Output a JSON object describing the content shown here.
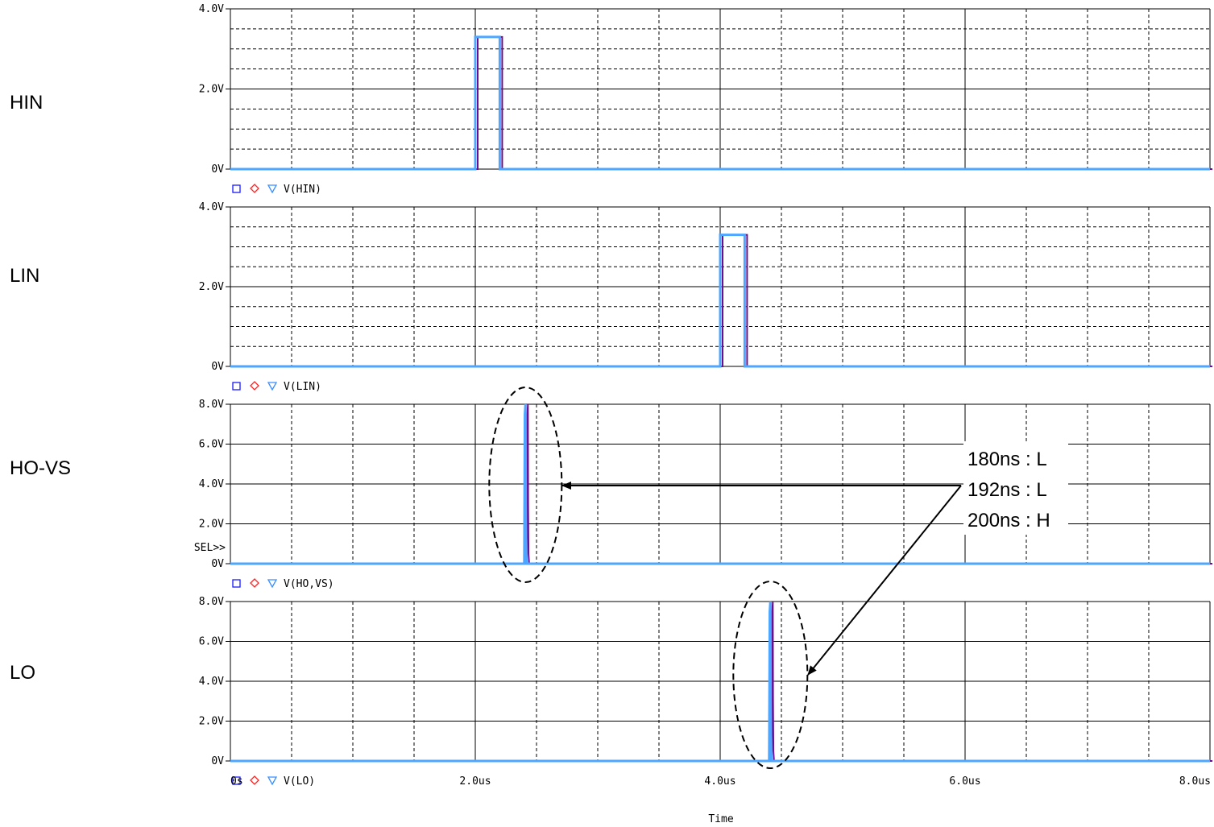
{
  "colors": {
    "trace": "#4da6ff",
    "trace_dark": "#6a0d91",
    "trace_marker_red": "#e03030",
    "grid": "#000000",
    "background": "#ffffff"
  },
  "chart_data": [
    {
      "type": "line",
      "side_label": "HIN",
      "legend": "V(HIN)",
      "legend_symbols": [
        "□",
        "◇",
        "▽"
      ],
      "ylim": [
        0,
        4.0
      ],
      "ytick_labels": [
        "4.0V",
        "2.0V",
        "0V"
      ],
      "ytick_values": [
        4.0,
        2.0,
        0
      ],
      "sel_marker": "",
      "series": [
        {
          "x_us": [
            0,
            2.0,
            2.0,
            2.2,
            2.2,
            8.0
          ],
          "y": [
            0,
            0,
            3.3,
            3.3,
            0,
            0
          ]
        }
      ]
    },
    {
      "type": "line",
      "side_label": "LIN",
      "legend": "V(LIN)",
      "legend_symbols": [
        "□",
        "◇",
        "▽"
      ],
      "ylim": [
        0,
        4.0
      ],
      "ytick_labels": [
        "4.0V",
        "2.0V",
        "0V"
      ],
      "ytick_values": [
        4.0,
        2.0,
        0
      ],
      "sel_marker": "",
      "series": [
        {
          "x_us": [
            0,
            4.0,
            4.0,
            4.2,
            4.2,
            8.0
          ],
          "y": [
            0,
            0,
            3.3,
            3.3,
            0,
            0
          ]
        }
      ]
    },
    {
      "type": "line",
      "side_label": "HO-VS",
      "legend": "V(HO,VS)",
      "legend_symbols": [
        "□",
        "◇",
        "▽"
      ],
      "ylim": [
        0,
        8.0
      ],
      "ytick_labels": [
        "8.0V",
        "6.0V",
        "4.0V",
        "2.0V",
        "0V"
      ],
      "ytick_values": [
        8.0,
        6.0,
        4.0,
        2.0,
        0
      ],
      "sel_marker": "SEL>>",
      "series": [
        {
          "x_us": [
            0,
            2.4,
            2.405,
            2.41,
            2.412,
            2.415,
            2.42,
            8.0
          ],
          "y": [
            0,
            0,
            7.5,
            8.0,
            3.0,
            0.5,
            0,
            0
          ]
        }
      ]
    },
    {
      "type": "line",
      "side_label": "LO",
      "legend": "V(LO)",
      "legend_symbols": [
        "□",
        "◇",
        "▽"
      ],
      "ylim": [
        0,
        8.0
      ],
      "ytick_labels": [
        "8.0V",
        "6.0V",
        "4.0V",
        "2.0V",
        "0V"
      ],
      "ytick_values": [
        8.0,
        6.0,
        4.0,
        2.0,
        0
      ],
      "sel_marker": "",
      "series": [
        {
          "x_us": [
            0,
            4.4,
            4.405,
            4.41,
            4.412,
            4.415,
            4.42,
            8.0
          ],
          "y": [
            0,
            0,
            7.5,
            8.0,
            3.0,
            0.5,
            0,
            0
          ]
        }
      ]
    }
  ],
  "x_axis": {
    "xlim_us": [
      0,
      8.0
    ],
    "tick_values_us": [
      0,
      2.0,
      4.0,
      6.0,
      8.0
    ],
    "tick_labels": [
      "0s",
      "2.0us",
      "4.0us",
      "6.0us",
      "8.0us"
    ],
    "xlabel": "Time"
  },
  "annotation": {
    "lines": [
      "180ns : L",
      "192ns : L",
      "200ns : H"
    ],
    "ho_peak_time_us": 2.41,
    "lo_peak_time_us": 4.41
  }
}
